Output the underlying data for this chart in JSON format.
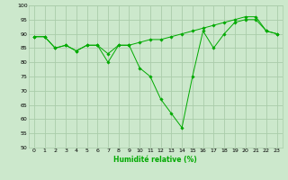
{
  "xlabel": "Humidité relative (%)",
  "ylabel": "",
  "bg_color": "#cce8cc",
  "grid_color": "#aaccaa",
  "line_color": "#00aa00",
  "xlim": [
    -0.5,
    23.5
  ],
  "ylim": [
    50,
    100
  ],
  "xticks": [
    0,
    1,
    2,
    3,
    4,
    5,
    6,
    7,
    8,
    9,
    10,
    11,
    12,
    13,
    14,
    15,
    16,
    17,
    18,
    19,
    20,
    21,
    22,
    23
  ],
  "yticks": [
    50,
    55,
    60,
    65,
    70,
    75,
    80,
    85,
    90,
    95,
    100
  ],
  "line1_x": [
    0,
    1,
    2,
    3,
    4,
    5,
    6,
    7,
    8,
    9,
    10,
    11,
    12,
    13,
    14,
    15,
    16,
    17,
    18,
    19,
    20,
    21,
    22,
    23
  ],
  "line1_y": [
    89,
    89,
    85,
    86,
    84,
    86,
    86,
    83,
    86,
    86,
    87,
    88,
    88,
    89,
    90,
    91,
    92,
    93,
    94,
    95,
    96,
    96,
    91,
    90
  ],
  "line2_x": [
    0,
    1,
    2,
    3,
    4,
    5,
    6,
    7,
    8,
    9,
    10,
    11,
    12,
    13,
    14,
    15,
    16,
    17,
    18,
    19,
    20,
    21,
    22,
    23
  ],
  "line2_y": [
    89,
    89,
    85,
    86,
    84,
    86,
    86,
    80,
    86,
    86,
    78,
    75,
    67,
    62,
    57,
    75,
    91,
    85,
    90,
    94,
    95,
    95,
    91,
    90
  ],
  "tick_fontsize": 4.5,
  "xlabel_fontsize": 5.5,
  "marker_size": 1.8,
  "line_width": 0.7
}
